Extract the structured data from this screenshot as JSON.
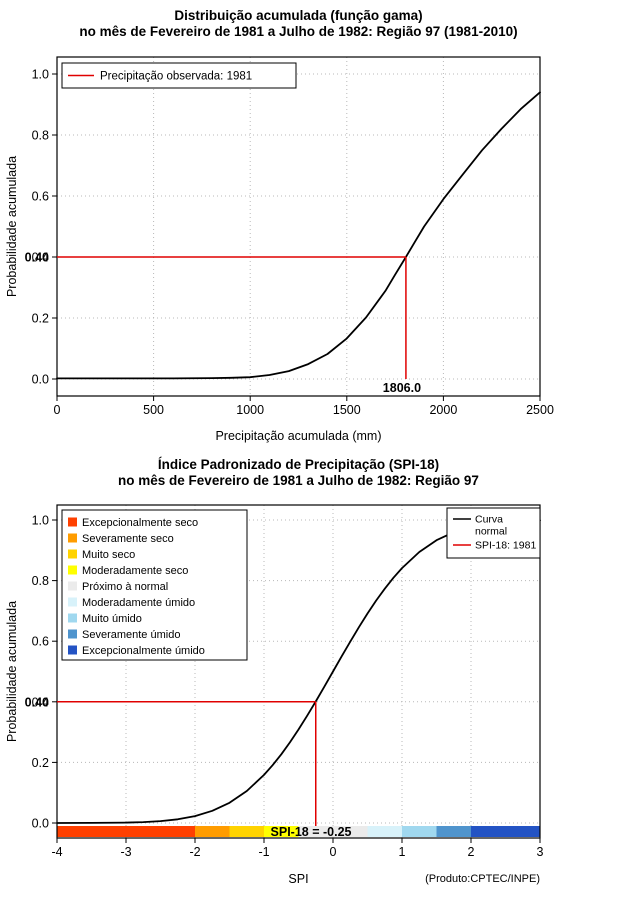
{
  "page": {
    "background": "#ffffff"
  },
  "chart_data": [
    {
      "type": "line",
      "id": "gamma-cdf",
      "title": "Distribuição acumulada (função gama)",
      "subtitle": "no mês de Fevereiro de 1981 a Julho de 1982: Região 97 (1981-2010)",
      "xlabel": "Precipitação acumulada (mm)",
      "ylabel": "Probabilidade acumulada",
      "xlim": [
        0,
        2500
      ],
      "ylim": [
        0,
        1
      ],
      "grid": true,
      "legend_position": "top-left",
      "xticks": [
        0,
        500,
        1000,
        1500,
        2000,
        2500
      ],
      "xtick_labels": [
        "0",
        "500",
        "1000",
        "1500",
        "2000",
        "2500"
      ],
      "yticks": [
        0,
        0.2,
        0.4,
        0.6,
        0.8,
        1
      ],
      "ytick_labels": [
        "0.0",
        "0.2",
        "0.4",
        "0.6",
        "0.8",
        "1.0"
      ],
      "curve_color": "#000000",
      "marker_color": "#e00000",
      "legend": {
        "items": [
          {
            "label": "Precipitação observada: 1981",
            "color": "#e00000"
          }
        ]
      },
      "marker": {
        "x": 1806.0,
        "y": 0.4,
        "x_label": "1806.0",
        "y_label": "0.40"
      },
      "series": [
        {
          "name": "gamma-cdf-curve",
          "points": [
            [
              0,
              0.002
            ],
            [
              200,
              0.002
            ],
            [
              400,
              0.002
            ],
            [
              600,
              0.002
            ],
            [
              800,
              0.003
            ],
            [
              900,
              0.004
            ],
            [
              1000,
              0.006
            ],
            [
              1100,
              0.013
            ],
            [
              1200,
              0.026
            ],
            [
              1300,
              0.049
            ],
            [
              1400,
              0.082
            ],
            [
              1500,
              0.133
            ],
            [
              1600,
              0.202
            ],
            [
              1700,
              0.289
            ],
            [
              1750,
              0.342
            ],
            [
              1806,
              0.4
            ],
            [
              1850,
              0.447
            ],
            [
              1900,
              0.5
            ],
            [
              2000,
              0.59
            ],
            [
              2100,
              0.67
            ],
            [
              2200,
              0.75
            ],
            [
              2300,
              0.82
            ],
            [
              2400,
              0.885
            ],
            [
              2500,
              0.94
            ]
          ]
        }
      ]
    },
    {
      "type": "line",
      "id": "spi-18",
      "title": "Índice Padronizado de Precipitação (SPI-18)",
      "subtitle": "no mês de Fevereiro de 1981 a Julho de 1982: Região 97",
      "xlabel": "SPI",
      "ylabel": "Probabilidade acumulada",
      "xlim": [
        -4,
        3
      ],
      "ylim": [
        0,
        1
      ],
      "grid": true,
      "xticks": [
        -4,
        -3,
        -2,
        -1,
        0,
        1,
        2,
        3
      ],
      "xtick_labels": [
        "-4",
        "-3",
        "-2",
        "-1",
        "0",
        "1",
        "2",
        "3"
      ],
      "yticks": [
        0,
        0.2,
        0.4,
        0.6,
        0.8,
        1
      ],
      "ytick_labels": [
        "0.0",
        "0.2",
        "0.4",
        "0.6",
        "0.8",
        "1.0"
      ],
      "curve_color": "#000000",
      "marker_color": "#e00000",
      "category_legend": [
        {
          "label": "Excepcionalmente seco",
          "color": "#ff4000"
        },
        {
          "label": "Severamente seco",
          "color": "#ff9c00"
        },
        {
          "label": "Muito seco",
          "color": "#ffd300"
        },
        {
          "label": "Moderadamente seco",
          "color": "#ffff00"
        },
        {
          "label": "Próximo à normal",
          "color": "#ebebeb"
        },
        {
          "label": "Moderadamente úmido",
          "color": "#d8f2fa"
        },
        {
          "label": "Muito úmido",
          "color": "#a0d8ef"
        },
        {
          "label": "Severamente úmido",
          "color": "#4f94cd"
        },
        {
          "label": "Excepcionalmente úmido",
          "color": "#2353c4"
        }
      ],
      "line_legend": {
        "position": "top-right",
        "items": [
          {
            "label": "Curva normal",
            "wrap": [
              "Curva",
              "normal"
            ],
            "color": "#000000"
          },
          {
            "label": "SPI-18: 1981",
            "wrap": [
              "SPI-18: 1981"
            ],
            "color": "#e00000"
          }
        ]
      },
      "band": [
        {
          "from": -4,
          "to": -2,
          "color": "#ff4000"
        },
        {
          "from": -2,
          "to": -1.5,
          "color": "#ff9c00"
        },
        {
          "from": -1.5,
          "to": -1,
          "color": "#ffd300"
        },
        {
          "from": -1,
          "to": -0.5,
          "color": "#ffff00"
        },
        {
          "from": -0.5,
          "to": 0.5,
          "color": "#ebebeb"
        },
        {
          "from": 0.5,
          "to": 1,
          "color": "#d8f2fa"
        },
        {
          "from": 1,
          "to": 1.5,
          "color": "#a0d8ef"
        },
        {
          "from": 1.5,
          "to": 2,
          "color": "#4f94cd"
        },
        {
          "from": 2,
          "to": 3,
          "color": "#2353c4"
        }
      ],
      "marker": {
        "x": -0.25,
        "y": 0.4,
        "label": "SPI-18 = -0.25",
        "y_label": "0.40"
      },
      "footnote": "(Produto:CPTEC/INPE)",
      "series": [
        {
          "name": "normal-cdf-curve",
          "points": [
            [
              -4,
              0.0001
            ],
            [
              -3.5,
              0.0002
            ],
            [
              -3,
              0.0013
            ],
            [
              -2.75,
              0.003
            ],
            [
              -2.5,
              0.0062
            ],
            [
              -2.25,
              0.0122
            ],
            [
              -2,
              0.0228
            ],
            [
              -1.75,
              0.0401
            ],
            [
              -1.5,
              0.0668
            ],
            [
              -1.25,
              0.1056
            ],
            [
              -1,
              0.1587
            ],
            [
              -0.875,
              0.1908
            ],
            [
              -0.75,
              0.2266
            ],
            [
              -0.625,
              0.266
            ],
            [
              -0.5,
              0.3085
            ],
            [
              -0.375,
              0.3538
            ],
            [
              -0.25,
              0.4013
            ],
            [
              -0.125,
              0.4503
            ],
            [
              0,
              0.5
            ],
            [
              0.125,
              0.5497
            ],
            [
              0.25,
              0.5987
            ],
            [
              0.375,
              0.6462
            ],
            [
              0.5,
              0.6915
            ],
            [
              0.625,
              0.734
            ],
            [
              0.75,
              0.7734
            ],
            [
              0.875,
              0.8092
            ],
            [
              1,
              0.8413
            ],
            [
              1.25,
              0.8944
            ],
            [
              1.5,
              0.9332
            ],
            [
              1.75,
              0.9599
            ],
            [
              2,
              0.9772
            ],
            [
              2.25,
              0.9878
            ],
            [
              2.5,
              0.9938
            ],
            [
              2.75,
              0.997
            ],
            [
              3,
              0.9987
            ]
          ]
        }
      ]
    }
  ]
}
